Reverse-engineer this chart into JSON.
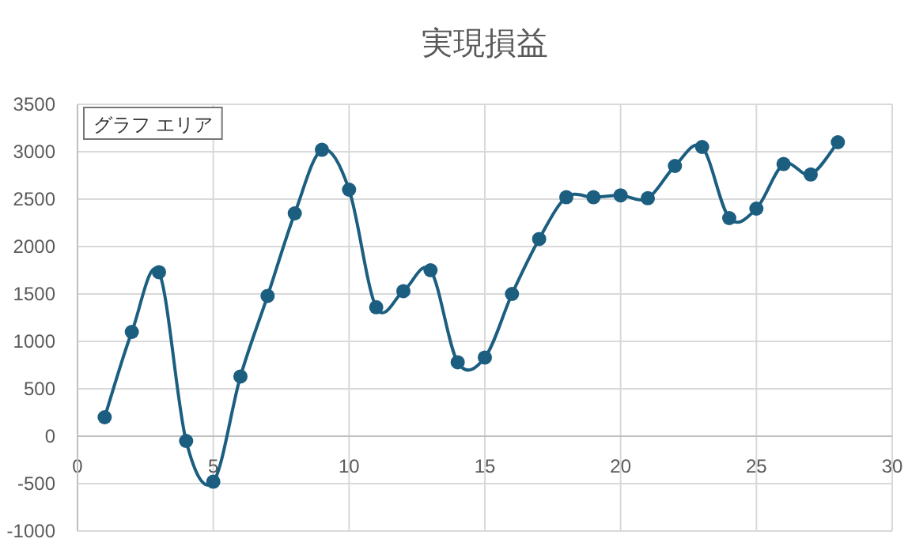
{
  "chart_data": {
    "type": "line",
    "title": "実現損益",
    "x": [
      1,
      2,
      3,
      4,
      5,
      6,
      7,
      8,
      9,
      10,
      11,
      12,
      13,
      14,
      15,
      16,
      17,
      18,
      19,
      20,
      21,
      22,
      23,
      24,
      25,
      26,
      27,
      28
    ],
    "series": [
      {
        "color": "#1b5e80",
        "values": [
          200,
          1100,
          1730,
          -50,
          -480,
          630,
          1480,
          2350,
          3020,
          2600,
          1360,
          1530,
          1750,
          780,
          830,
          1500,
          2080,
          2520,
          2520,
          2540,
          2510,
          2850,
          3050,
          2300,
          2400,
          2870,
          2760,
          3100
        ]
      }
    ],
    "marker": "circle",
    "xlim": [
      0,
      30
    ],
    "xticks": [
      0,
      5,
      10,
      15,
      20,
      25,
      30
    ],
    "ylim": [
      -1000,
      3500
    ],
    "yticks": [
      -1000,
      -500,
      0,
      500,
      1000,
      1500,
      2000,
      2500,
      3000,
      3500
    ],
    "grid": true,
    "annotations": [
      "グラフ エリア"
    ]
  }
}
